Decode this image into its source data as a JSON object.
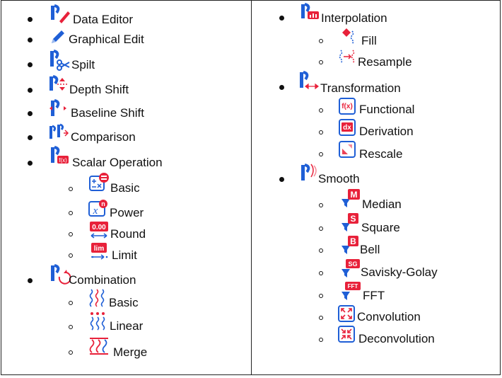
{
  "left_column": {
    "items": [
      {
        "label": "Data Editor",
        "icon": "data-editor-icon"
      },
      {
        "label": "Graphical Edit",
        "icon": "pencil-icon"
      },
      {
        "label": "Spilt",
        "icon": "scissors-icon"
      },
      {
        "label": "Depth Shift",
        "icon": "depth-shift-icon"
      },
      {
        "label": "Baseline Shift",
        "icon": "baseline-shift-icon"
      },
      {
        "label": "Comparison",
        "icon": "comparison-icon"
      },
      {
        "label": "Scalar Operation",
        "icon": "scalar-operation-icon",
        "subitems": [
          {
            "label": "Basic",
            "icon": "basic-arithmetic-icon"
          },
          {
            "label": "Power",
            "icon": "power-icon"
          },
          {
            "label": "Round",
            "icon": "round-icon",
            "badge": "0.00"
          },
          {
            "label": "Limit",
            "icon": "limit-icon",
            "badge": "lim"
          }
        ]
      },
      {
        "label": "Combination",
        "icon": "combination-icon",
        "subitems": [
          {
            "label": "Basic",
            "icon": "wave-basic-icon"
          },
          {
            "label": "Linear",
            "icon": "wave-linear-icon"
          },
          {
            "label": "Merge",
            "icon": "merge-icon"
          }
        ]
      }
    ]
  },
  "right_column": {
    "items": [
      {
        "label": "Interpolation",
        "icon": "interpolation-icon",
        "subitems": [
          {
            "label": "Fill",
            "icon": "fill-icon"
          },
          {
            "label": "Resample",
            "icon": "resample-icon"
          }
        ]
      },
      {
        "label": "Transformation",
        "icon": "transformation-icon",
        "subitems": [
          {
            "label": "Functional",
            "icon": "functional-icon",
            "badge": "f(x)"
          },
          {
            "label": "Derivation",
            "icon": "derivation-icon",
            "badge": "dx"
          },
          {
            "label": "Rescale",
            "icon": "rescale-icon"
          }
        ]
      },
      {
        "label": "Smooth",
        "icon": "smooth-icon",
        "subitems": [
          {
            "label": "Median",
            "icon": "median-filter-icon",
            "badge": "M"
          },
          {
            "label": "Square",
            "icon": "square-filter-icon",
            "badge": "S"
          },
          {
            "label": "Bell",
            "icon": "bell-filter-icon",
            "badge": "B"
          },
          {
            "label": "Savisky-Golay",
            "icon": "savisky-golay-filter-icon",
            "badge": "SG"
          },
          {
            "label": "FFT",
            "icon": "fft-filter-icon",
            "badge": "FFT"
          },
          {
            "label": "Convolution",
            "icon": "convolution-icon"
          },
          {
            "label": "Deconvolution",
            "icon": "deconvolution-icon"
          }
        ]
      }
    ]
  },
  "colors": {
    "blue": "#1f5fd6",
    "red": "#e8213a"
  }
}
